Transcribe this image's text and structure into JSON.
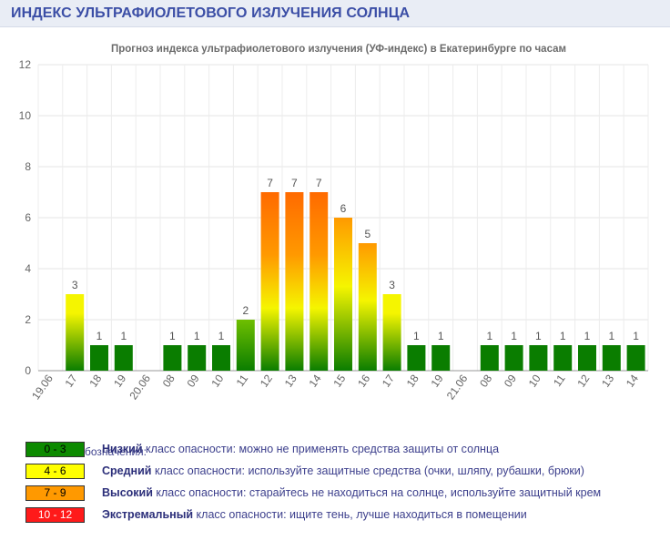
{
  "header": {
    "title": "ИНДЕКС УЛЬТРАФИОЛЕТОВОГО ИЗЛУЧЕНИЯ СОЛНЦА"
  },
  "chart_data": {
    "type": "bar",
    "title": "Прогноз индекса ультрафиолетового излучения (УФ-индекс) в Екатеринбурге по часам",
    "xlabel": "",
    "ylabel": "",
    "ylim": [
      0,
      12
    ],
    "yticks": [
      0,
      2,
      4,
      6,
      8,
      10,
      12
    ],
    "grid": true,
    "categories": [
      "19.06",
      "17",
      "18",
      "19",
      "20.06",
      "08",
      "09",
      "10",
      "11",
      "12",
      "13",
      "14",
      "15",
      "16",
      "17",
      "18",
      "19",
      "21.06",
      "08",
      "09",
      "10",
      "11",
      "12",
      "13",
      "14"
    ],
    "values": [
      null,
      3,
      1,
      1,
      null,
      1,
      1,
      1,
      2,
      7,
      7,
      7,
      6,
      5,
      3,
      1,
      1,
      null,
      1,
      1,
      1,
      1,
      1,
      1,
      1
    ],
    "colors": {
      "green": "#0a7d00",
      "yellow": "#f5f500",
      "orange": "#ff9900",
      "red": "#ff6a00"
    }
  },
  "legend": {
    "title": "Условные обозначения:",
    "items": [
      {
        "range": "0 - 3",
        "bold": "Низкий",
        "text": " класс опасности: можно не применять средства защиты от солнца",
        "bg": "#0c8a00",
        "fg": "#000000"
      },
      {
        "range": "4 - 6",
        "bold": "Средний",
        "text": " класс опасности: используйте защитные средства (очки, шляпу, рубашки, брюки)",
        "bg": "#ffff00",
        "fg": "#000000"
      },
      {
        "range": "7 - 9",
        "bold": "Высокий",
        "text": " класс опасности: старайтесь не находиться на солнце, используйте защитный крем",
        "bg": "#ff9900",
        "fg": "#000000"
      },
      {
        "range": "10 - 12",
        "bold": "Экстремальный",
        "text": " класс опасности: ищите тень, лучше находиться в помещении",
        "bg": "#ff1a1a",
        "fg": "#ffffff"
      }
    ]
  }
}
